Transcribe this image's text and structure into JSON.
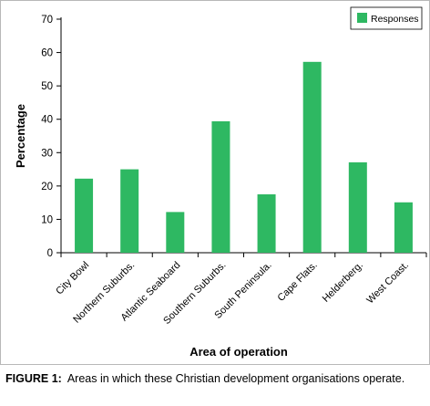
{
  "chart_data": {
    "type": "bar",
    "categories": [
      "City Bowl",
      "Northern Suburbs.",
      "Atlantic Seaboard",
      "Southern Suburbs.",
      "South Peninsula.",
      "Cape Flats.",
      "Helderberg.",
      "West Coast."
    ],
    "series": [
      {
        "name": "Responses",
        "values": [
          22.2,
          25.0,
          12.2,
          39.4,
          17.5,
          57.2,
          27.1,
          15.1
        ],
        "color": "#2eb862"
      }
    ],
    "xlabel": "Area of operation",
    "ylabel": "Percentage",
    "ylim": [
      0,
      70
    ],
    "yticks": [
      0,
      10,
      20,
      30,
      40,
      50,
      60,
      70
    ],
    "grid": false,
    "legend": "top-right"
  },
  "caption": {
    "label": "FIGURE 1:",
    "text": "Areas in which these Christian development organisations operate."
  }
}
